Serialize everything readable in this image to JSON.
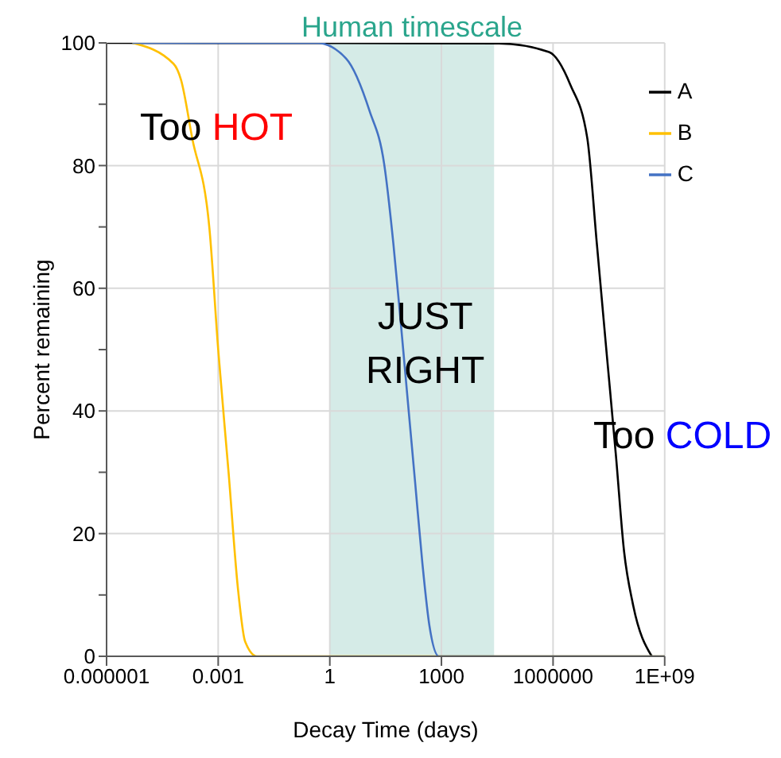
{
  "chart_data": {
    "type": "line",
    "xlabel": "Decay Time (days)",
    "ylabel": "Percent remaining",
    "log": "x",
    "grid": true,
    "legend": "top right",
    "line_style": "solid",
    "marker": "none",
    "xlim": [
      1e-06,
      1000000000
    ],
    "xticks": [
      {
        "value": 1e-06,
        "label": "0.000001"
      },
      0.001,
      1,
      1000,
      1000000,
      {
        "value": 1000000000,
        "label": "1E+09"
      }
    ],
    "ylim": [
      0,
      100
    ],
    "yticks": [
      0,
      {
        "value": 10,
        "label": null
      },
      20,
      {
        "value": 30,
        "label": null
      },
      40,
      {
        "value": 50,
        "label": null
      },
      60,
      {
        "value": 70,
        "label": null
      },
      80,
      {
        "value": 90,
        "label": null
      },
      100
    ],
    "bands": [
      {
        "axis": "x",
        "from": 1,
        "to": 26000,
        "label": "Human timescale",
        "color": "#d5ebe7"
      }
    ],
    "annotations": [
      "Too HOT",
      "JUST RIGHT",
      "Too COLD"
    ],
    "series": [
      {
        "name": "A",
        "color": "#000000",
        "x": [
          1e-06,
          35000,
          780000,
          2900000,
          8300000,
          15000000,
          27000000,
          49000000,
          81000000,
          140000000,
          450000000
        ],
        "values": [
          100,
          99.9,
          98.5,
          93.2,
          84.5,
          67.3,
          50,
          32.7,
          17.1,
          8.5,
          0
        ]
      },
      {
        "name": "B",
        "color": "#ffc000",
        "x": [
          5e-06,
          6.3e-05,
          0.0001,
          0.0002,
          0.00058,
          0.001,
          0.0019,
          0.0034,
          0.0053,
          0.011,
          1000000000
        ],
        "values": [
          100,
          96.6,
          94,
          84.5,
          69.8,
          50,
          30,
          11,
          2.4,
          0,
          0
        ]
      },
      {
        "name": "C",
        "color": "#4472c4",
        "x": [
          5e-06,
          0.45,
          2.7,
          11.7,
          29,
          51,
          81,
          126,
          196,
          305,
          475,
          850,
          1000000000
        ],
        "values": [
          100,
          100,
          97.5,
          88.9,
          80.2,
          67.3,
          54.3,
          41.3,
          28.4,
          15.4,
          5,
          0,
          0
        ]
      }
    ]
  }
}
